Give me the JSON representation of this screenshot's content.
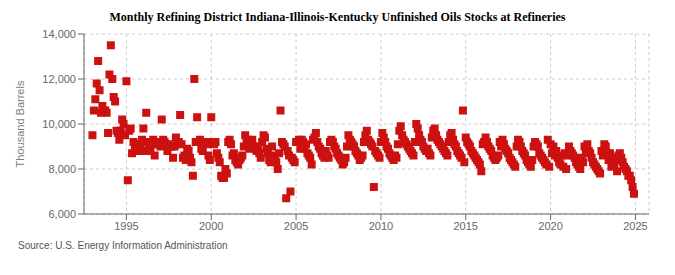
{
  "chart_data": {
    "type": "scatter",
    "title": "Monthly Refining District Indiana-Illinois-Kentucky Unfinished Oils Stocks at Refineries",
    "y_label": "Thousand Barrels",
    "annotation": "Source: U.S. Energy Information Administration",
    "marker": "square",
    "color": "#cc1111",
    "grid": true,
    "xlim": [
      1992.5,
      2025.8
    ],
    "xticks": [
      1995,
      2000,
      2005,
      2010,
      2015,
      2020,
      2025
    ],
    "ylim": [
      6000,
      14000
    ],
    "yticks": [
      {
        "value": 6000,
        "label": "6,000"
      },
      {
        "value": 8000,
        "label": "8,000"
      },
      {
        "value": 10000,
        "label": "10,000"
      },
      {
        "value": 12000,
        "label": "12,000"
      },
      {
        "value": 14000,
        "label": "14,000"
      }
    ],
    "x": [
      1993.0,
      1993.083,
      1993.167,
      1993.25,
      1993.333,
      1993.417,
      1993.5,
      1993.583,
      1993.667,
      1993.75,
      1993.833,
      1993.917,
      1994.0,
      1994.083,
      1994.167,
      1994.25,
      1994.333,
      1994.417,
      1994.5,
      1994.583,
      1994.667,
      1994.75,
      1994.833,
      1994.917,
      1995.0,
      1995.083,
      1995.167,
      1995.25,
      1995.333,
      1995.417,
      1995.5,
      1995.583,
      1995.667,
      1995.75,
      1995.833,
      1995.917,
      1996.0,
      1996.083,
      1996.167,
      1996.25,
      1996.333,
      1996.417,
      1996.5,
      1996.583,
      1996.667,
      1996.75,
      1996.833,
      1996.917,
      1997.0,
      1997.083,
      1997.167,
      1997.25,
      1997.333,
      1997.417,
      1997.5,
      1997.583,
      1997.667,
      1997.75,
      1997.833,
      1997.917,
      1998.0,
      1998.083,
      1998.167,
      1998.25,
      1998.333,
      1998.417,
      1998.5,
      1998.583,
      1998.667,
      1998.75,
      1998.833,
      1998.917,
      1999.0,
      1999.083,
      1999.167,
      1999.25,
      1999.333,
      1999.417,
      1999.5,
      1999.583,
      1999.667,
      1999.75,
      1999.833,
      1999.917,
      2000.0,
      2000.083,
      2000.167,
      2000.25,
      2000.333,
      2000.417,
      2000.5,
      2000.583,
      2000.667,
      2000.75,
      2000.833,
      2000.917,
      2001.0,
      2001.083,
      2001.167,
      2001.25,
      2001.333,
      2001.417,
      2001.5,
      2001.583,
      2001.667,
      2001.75,
      2001.833,
      2001.917,
      2002.0,
      2002.083,
      2002.167,
      2002.25,
      2002.333,
      2002.417,
      2002.5,
      2002.583,
      2002.667,
      2002.75,
      2002.833,
      2002.917,
      2003.0,
      2003.083,
      2003.167,
      2003.25,
      2003.333,
      2003.417,
      2003.5,
      2003.583,
      2003.667,
      2003.75,
      2003.833,
      2003.917,
      2004.0,
      2004.083,
      2004.167,
      2004.25,
      2004.333,
      2004.417,
      2004.5,
      2004.583,
      2004.667,
      2004.75,
      2004.833,
      2004.917,
      2005.0,
      2005.083,
      2005.167,
      2005.25,
      2005.333,
      2005.417,
      2005.5,
      2005.583,
      2005.667,
      2005.75,
      2005.833,
      2005.917,
      2006.0,
      2006.083,
      2006.167,
      2006.25,
      2006.333,
      2006.417,
      2006.5,
      2006.583,
      2006.667,
      2006.75,
      2006.833,
      2006.917,
      2007.0,
      2007.083,
      2007.167,
      2007.25,
      2007.333,
      2007.417,
      2007.5,
      2007.583,
      2007.667,
      2007.75,
      2007.833,
      2007.917,
      2008.0,
      2008.083,
      2008.167,
      2008.25,
      2008.333,
      2008.417,
      2008.5,
      2008.583,
      2008.667,
      2008.75,
      2008.833,
      2008.917,
      2009.0,
      2009.083,
      2009.167,
      2009.25,
      2009.333,
      2009.417,
      2009.5,
      2009.583,
      2009.667,
      2009.75,
      2009.833,
      2009.917,
      2010.0,
      2010.083,
      2010.167,
      2010.25,
      2010.333,
      2010.417,
      2010.5,
      2010.583,
      2010.667,
      2010.75,
      2010.833,
      2010.917,
      2011.0,
      2011.083,
      2011.167,
      2011.25,
      2011.333,
      2011.417,
      2011.5,
      2011.583,
      2011.667,
      2011.75,
      2011.833,
      2011.917,
      2012.0,
      2012.083,
      2012.167,
      2012.25,
      2012.333,
      2012.417,
      2012.5,
      2012.583,
      2012.667,
      2012.75,
      2012.833,
      2012.917,
      2013.0,
      2013.083,
      2013.167,
      2013.25,
      2013.333,
      2013.417,
      2013.5,
      2013.583,
      2013.667,
      2013.75,
      2013.833,
      2013.917,
      2014.0,
      2014.083,
      2014.167,
      2014.25,
      2014.333,
      2014.417,
      2014.5,
      2014.583,
      2014.667,
      2014.75,
      2014.833,
      2014.917,
      2015.0,
      2015.083,
      2015.167,
      2015.25,
      2015.333,
      2015.417,
      2015.5,
      2015.583,
      2015.667,
      2015.75,
      2015.833,
      2015.917,
      2016.0,
      2016.083,
      2016.167,
      2016.25,
      2016.333,
      2016.417,
      2016.5,
      2016.583,
      2016.667,
      2016.75,
      2016.833,
      2016.917,
      2017.0,
      2017.083,
      2017.167,
      2017.25,
      2017.333,
      2017.417,
      2017.5,
      2017.583,
      2017.667,
      2017.75,
      2017.833,
      2017.917,
      2018.0,
      2018.083,
      2018.167,
      2018.25,
      2018.333,
      2018.417,
      2018.5,
      2018.583,
      2018.667,
      2018.75,
      2018.833,
      2018.917,
      2019.0,
      2019.083,
      2019.167,
      2019.25,
      2019.333,
      2019.417,
      2019.5,
      2019.583,
      2019.667,
      2019.75,
      2019.833,
      2019.917,
      2020.0,
      2020.083,
      2020.167,
      2020.25,
      2020.333,
      2020.417,
      2020.5,
      2020.583,
      2020.667,
      2020.75,
      2020.833,
      2020.917,
      2021.0,
      2021.083,
      2021.167,
      2021.25,
      2021.333,
      2021.417,
      2021.5,
      2021.583,
      2021.667,
      2021.75,
      2021.833,
      2021.917,
      2022.0,
      2022.083,
      2022.167,
      2022.25,
      2022.333,
      2022.417,
      2022.5,
      2022.583,
      2022.667,
      2022.75,
      2022.833,
      2022.917,
      2023.0,
      2023.083,
      2023.167,
      2023.25,
      2023.333,
      2023.417,
      2023.5,
      2023.583,
      2023.667,
      2023.75,
      2023.833,
      2023.917,
      2024.0,
      2024.083,
      2024.167,
      2024.25,
      2024.333,
      2024.417,
      2024.5,
      2024.583,
      2024.667,
      2024.75,
      2024.833,
      2024.917
    ],
    "values": [
      9500,
      10600,
      11100,
      11800,
      12800,
      11500,
      10500,
      10800,
      10600,
      10600,
      10500,
      9600,
      12200,
      13500,
      12000,
      11200,
      11000,
      9700,
      9600,
      9300,
      9700,
      10200,
      10000,
      9500,
      11900,
      7500,
      9700,
      9800,
      8700,
      9200,
      9000,
      8900,
      8800,
      9000,
      9100,
      9300,
      9800,
      8800,
      10500,
      9200,
      8900,
      8800,
      9100,
      9300,
      8600,
      9200,
      9100,
      9200,
      9000,
      10200,
      9300,
      9200,
      9100,
      8800,
      9100,
      9000,
      9000,
      8500,
      9000,
      9400,
      9100,
      9200,
      10400,
      9100,
      8500,
      8600,
      8400,
      8900,
      8800,
      8500,
      8300,
      7700,
      12000,
      9200,
      10300,
      9200,
      9300,
      8900,
      8800,
      9200,
      9200,
      9100,
      8600,
      8400,
      10300,
      9200,
      9100,
      9200,
      8700,
      8500,
      8300,
      7700,
      7600,
      7600,
      8000,
      7800,
      9200,
      9300,
      9100,
      8600,
      8700,
      8400,
      8300,
      8200,
      8400,
      8500,
      8600,
      9000,
      9500,
      9200,
      9300,
      8900,
      9100,
      9300,
      9000,
      8900,
      8800,
      9000,
      8700,
      8500,
      9200,
      9500,
      9400,
      8900,
      8700,
      8400,
      8300,
      9000,
      8600,
      8500,
      8300,
      8000,
      8700,
      10600,
      9200,
      9100,
      9000,
      6700,
      8800,
      8600,
      7000,
      8500,
      8400,
      8300,
      9200,
      9200,
      9300,
      8900,
      9300,
      9200,
      8900,
      9100,
      8700,
      8600,
      8500,
      8200,
      9300,
      9400,
      9600,
      9200,
      9000,
      8900,
      8700,
      8600,
      8500,
      8800,
      8600,
      8500,
      9200,
      9300,
      9200,
      9000,
      8900,
      8700,
      8600,
      8500,
      8400,
      8200,
      8300,
      8500,
      9000,
      9500,
      9300,
      9200,
      9100,
      9000,
      8800,
      8700,
      8600,
      8400,
      8500,
      8600,
      9200,
      9500,
      9700,
      9300,
      9200,
      9100,
      9000,
      7200,
      8800,
      8700,
      8600,
      8500,
      9200,
      9600,
      9400,
      9200,
      9000,
      8900,
      8700,
      8600,
      8500,
      8400,
      8600,
      8500,
      9100,
      9700,
      9900,
      9500,
      9300,
      9200,
      9100,
      9000,
      8900,
      8800,
      8700,
      8600,
      9200,
      10000,
      9800,
      9500,
      9300,
      9200,
      9000,
      8900,
      8800,
      8900,
      8700,
      8600,
      9400,
      9700,
      9800,
      9500,
      9300,
      9200,
      9100,
      9000,
      8900,
      8800,
      8700,
      8600,
      9200,
      9500,
      9600,
      9300,
      9100,
      9000,
      8800,
      8700,
      8600,
      8500,
      10600,
      8300,
      9400,
      9200,
      9100,
      9000,
      8800,
      8700,
      8600,
      8500,
      8400,
      8300,
      8200,
      7900,
      9100,
      9200,
      9400,
      9200,
      9000,
      8900,
      8800,
      8600,
      8500,
      8400,
      8500,
      8600,
      9200,
      9000,
      9300,
      9100,
      8900,
      8800,
      8700,
      8500,
      8400,
      8300,
      8200,
      8100,
      9000,
      9300,
      9200,
      9000,
      8800,
      8700,
      8600,
      8400,
      8300,
      8200,
      8100,
      8400,
      9000,
      9200,
      9100,
      9000,
      8700,
      8600,
      8500,
      8400,
      8300,
      8200,
      9300,
      8100,
      9100,
      8700,
      9000,
      8600,
      8800,
      8500,
      8300,
      8200,
      8600,
      8100,
      8700,
      8000,
      8600,
      9000,
      8800,
      8700,
      8600,
      8500,
      8300,
      8200,
      8100,
      8000,
      8500,
      8300,
      9000,
      8700,
      9100,
      8800,
      8700,
      8500,
      8300,
      8200,
      8100,
      8000,
      7900,
      7800,
      8800,
      8600,
      9100,
      9000,
      8700,
      8400,
      8700,
      8100,
      8500,
      8200,
      8400,
      7900,
      8600,
      8700,
      8500,
      8300,
      8100,
      8000,
      7900,
      7700,
      7700,
      7500,
      7200,
      6900
    ]
  }
}
